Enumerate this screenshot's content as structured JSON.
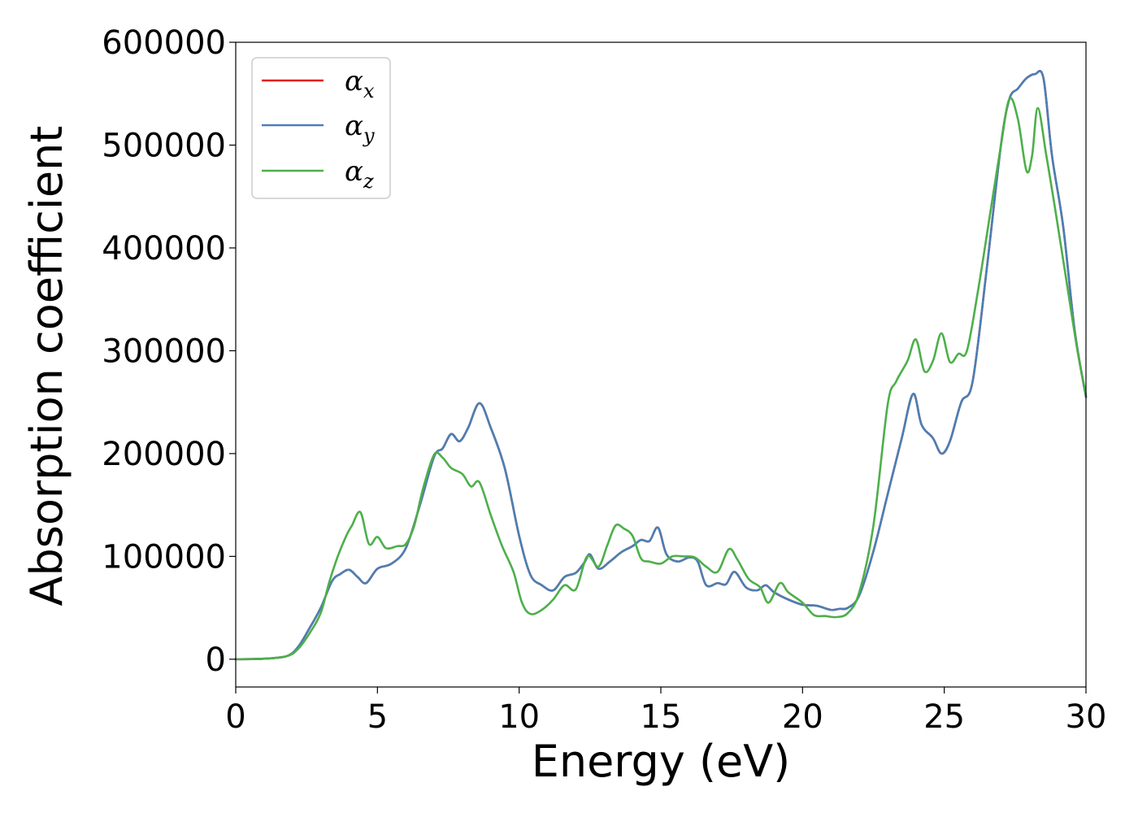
{
  "chart_data": {
    "type": "line",
    "title": "",
    "xlabel": "Energy (eV)",
    "ylabel": "Absorption coefficient",
    "xlim": [
      0,
      30
    ],
    "ylim": [
      -27000,
      600000
    ],
    "xticks": [
      0,
      5,
      10,
      15,
      20,
      25,
      30
    ],
    "xtick_labels": [
      "0",
      "5",
      "10",
      "15",
      "20",
      "25",
      "30"
    ],
    "yticks": [
      0,
      100000,
      200000,
      300000,
      400000,
      500000,
      600000
    ],
    "ytick_labels": [
      "0",
      "100000",
      "200000",
      "300000",
      "400000",
      "500000",
      "600000"
    ],
    "grid": false,
    "legend_position": "top-left",
    "series": [
      {
        "name": "αx",
        "name_base": "α",
        "name_sub": "x",
        "color": "#e41a1c",
        "x": [
          0,
          1,
          1.8,
          2.2,
          2.6,
          3.0,
          3.4,
          3.7,
          4.0,
          4.3,
          4.6,
          5.0,
          5.5,
          6.0,
          6.5,
          7.0,
          7.3,
          7.6,
          7.9,
          8.2,
          8.6,
          9.0,
          9.5,
          10.0,
          10.4,
          10.8,
          11.2,
          11.6,
          12.0,
          12.3,
          12.5,
          12.8,
          13.2,
          13.6,
          14.0,
          14.3,
          14.6,
          14.9,
          15.2,
          15.6,
          16.0,
          16.3,
          16.6,
          17.0,
          17.3,
          17.6,
          18.0,
          18.4,
          18.7,
          19.0,
          19.5,
          20.0,
          20.5,
          21.0,
          21.3,
          21.6,
          22.0,
          22.5,
          23.0,
          23.5,
          23.9,
          24.2,
          24.6,
          24.9,
          25.2,
          25.6,
          26.0,
          26.5,
          27.0,
          27.3,
          27.6,
          27.9,
          28.2,
          28.5,
          28.8,
          29.2,
          29.6,
          30.0
        ],
        "values": [
          0,
          500,
          3000,
          12000,
          30000,
          50000,
          76000,
          83000,
          87000,
          80000,
          74000,
          88000,
          93000,
          108000,
          150000,
          197000,
          205000,
          219000,
          212000,
          225000,
          249000,
          225000,
          185000,
          120000,
          82000,
          72000,
          67000,
          80000,
          84000,
          94000,
          102000,
          88000,
          95000,
          104000,
          110000,
          116000,
          115000,
          128000,
          102000,
          95000,
          99000,
          95000,
          72000,
          74000,
          73000,
          85000,
          70000,
          67000,
          72000,
          65000,
          58000,
          53000,
          52000,
          48000,
          49000,
          50000,
          62000,
          105000,
          160000,
          215000,
          258000,
          228000,
          215000,
          200000,
          212000,
          250000,
          270000,
          380000,
          500000,
          545000,
          555000,
          565000,
          569000,
          565000,
          490000,
          420000,
          320000,
          255000
        ]
      },
      {
        "name": "αy",
        "name_base": "α",
        "name_sub": "y",
        "color": "#4a7fb5",
        "x": [
          0,
          1,
          1.8,
          2.2,
          2.6,
          3.0,
          3.4,
          3.7,
          4.0,
          4.3,
          4.6,
          5.0,
          5.5,
          6.0,
          6.5,
          7.0,
          7.3,
          7.6,
          7.9,
          8.2,
          8.6,
          9.0,
          9.5,
          10.0,
          10.4,
          10.8,
          11.2,
          11.6,
          12.0,
          12.3,
          12.5,
          12.8,
          13.2,
          13.6,
          14.0,
          14.3,
          14.6,
          14.9,
          15.2,
          15.6,
          16.0,
          16.3,
          16.6,
          17.0,
          17.3,
          17.6,
          18.0,
          18.4,
          18.7,
          19.0,
          19.5,
          20.0,
          20.5,
          21.0,
          21.3,
          21.6,
          22.0,
          22.5,
          23.0,
          23.5,
          23.9,
          24.2,
          24.6,
          24.9,
          25.2,
          25.6,
          26.0,
          26.5,
          27.0,
          27.3,
          27.6,
          27.9,
          28.2,
          28.5,
          28.8,
          29.2,
          29.6,
          30.0
        ],
        "values": [
          0,
          500,
          3000,
          12000,
          30000,
          50000,
          76000,
          83000,
          87000,
          80000,
          74000,
          88000,
          93000,
          108000,
          150000,
          197000,
          205000,
          219000,
          212000,
          225000,
          249000,
          225000,
          185000,
          120000,
          82000,
          72000,
          67000,
          80000,
          84000,
          94000,
          102000,
          88000,
          95000,
          104000,
          110000,
          116000,
          115000,
          128000,
          102000,
          95000,
          99000,
          95000,
          72000,
          74000,
          73000,
          85000,
          70000,
          67000,
          72000,
          65000,
          58000,
          53000,
          52000,
          48000,
          49000,
          50000,
          62000,
          105000,
          160000,
          215000,
          258000,
          228000,
          215000,
          200000,
          212000,
          250000,
          270000,
          380000,
          500000,
          545000,
          555000,
          565000,
          569000,
          565000,
          490000,
          420000,
          320000,
          255000
        ]
      },
      {
        "name": "αz",
        "name_base": "α",
        "name_sub": "z",
        "color": "#4daf4a",
        "x": [
          0,
          1,
          1.8,
          2.2,
          2.6,
          3.0,
          3.3,
          3.6,
          3.9,
          4.1,
          4.4,
          4.7,
          5.0,
          5.3,
          5.7,
          6.0,
          6.3,
          6.6,
          7.0,
          7.3,
          7.6,
          8.0,
          8.3,
          8.6,
          9.0,
          9.4,
          9.8,
          10.1,
          10.4,
          10.8,
          11.2,
          11.6,
          12.0,
          12.4,
          12.8,
          13.1,
          13.4,
          13.7,
          14.0,
          14.3,
          14.6,
          15.0,
          15.4,
          15.8,
          16.2,
          16.6,
          17.0,
          17.4,
          17.7,
          18.1,
          18.5,
          18.8,
          19.2,
          19.5,
          20.0,
          20.4,
          20.8,
          21.2,
          21.6,
          22.0,
          22.5,
          23.0,
          23.3,
          23.7,
          24.0,
          24.3,
          24.6,
          24.9,
          25.2,
          25.5,
          25.8,
          26.2,
          26.6,
          27.0,
          27.3,
          27.6,
          27.9,
          28.1,
          28.3,
          28.6,
          28.9,
          29.3,
          29.7,
          30.0
        ],
        "values": [
          0,
          500,
          3000,
          10000,
          25000,
          45000,
          75000,
          100000,
          120000,
          130000,
          143000,
          112000,
          119000,
          108000,
          110000,
          112000,
          130000,
          165000,
          199000,
          196000,
          186000,
          180000,
          168000,
          172000,
          140000,
          110000,
          85000,
          55000,
          44000,
          48000,
          58000,
          72000,
          68000,
          100000,
          90000,
          110000,
          130000,
          127000,
          120000,
          98000,
          95000,
          93000,
          100000,
          100000,
          99000,
          90000,
          85000,
          107000,
          97000,
          78000,
          70000,
          55000,
          74000,
          65000,
          55000,
          43000,
          42000,
          41000,
          45000,
          65000,
          130000,
          247000,
          270000,
          290000,
          311000,
          280000,
          290000,
          317000,
          289000,
          297000,
          300000,
          360000,
          430000,
          500000,
          545000,
          525000,
          475000,
          490000,
          536000,
          490000,
          440000,
          370000,
          300000,
          257000
        ]
      }
    ]
  }
}
